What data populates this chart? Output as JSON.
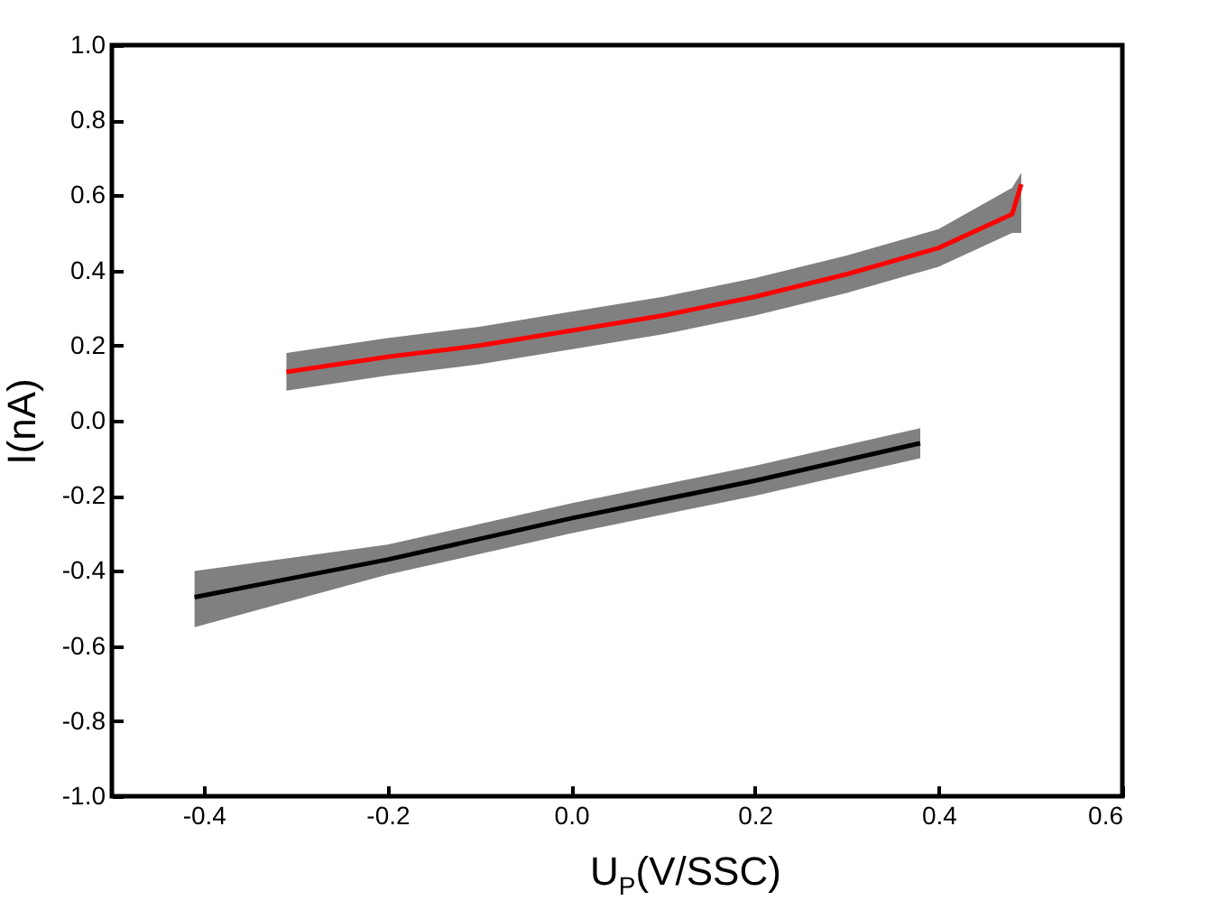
{
  "chart_data": {
    "type": "line",
    "xlabel": "U$_{P}$(V/SSC)",
    "ylabel": "I(nA)",
    "xlim": [
      -0.5,
      0.6
    ],
    "xticks": [
      {
        "value": -0.4,
        "label": "-0.4"
      },
      {
        "value": -0.2,
        "label": "-0.2"
      },
      {
        "value": 0,
        "label": "0.0"
      },
      {
        "value": 0.2,
        "label": "0.2"
      },
      {
        "value": 0.4,
        "label": "0.4"
      },
      {
        "value": 0.6,
        "label": "0.6"
      }
    ],
    "ylim": [
      -1,
      1
    ],
    "yticks": [
      {
        "value": -1,
        "label": "-1.0"
      },
      {
        "value": -0.8,
        "label": "-0.8"
      },
      {
        "value": -0.6,
        "label": "-0.6"
      },
      {
        "value": -0.4,
        "label": "-0.4"
      },
      {
        "value": -0.2,
        "label": "-0.2"
      },
      {
        "value": 0,
        "label": "0.0"
      },
      {
        "value": 0.2,
        "label": "0.2"
      },
      {
        "value": 0.4,
        "label": "0.4"
      },
      {
        "value": 0.6,
        "label": "0.6"
      },
      {
        "value": 0.8,
        "label": "0.8"
      },
      {
        "value": 1,
        "label": "1.0"
      }
    ],
    "series": [
      {
        "color": "#ff0000",
        "x": [
          -0.31,
          -0.2,
          -0.1,
          0,
          0.1,
          0.2,
          0.3,
          0.4,
          0.48,
          0.49
        ],
        "values": [
          0.13,
          0.17,
          0.2,
          0.24,
          0.28,
          0.33,
          0.39,
          0.46,
          0.55,
          0.63
        ],
        "lower": [
          0.08,
          0.12,
          0.15,
          0.19,
          0.23,
          0.28,
          0.34,
          0.41,
          0.5,
          0.5
        ],
        "upper": [
          0.18,
          0.22,
          0.25,
          0.29,
          0.33,
          0.38,
          0.44,
          0.51,
          0.62,
          0.66
        ]
      },
      {
        "color": "#000000",
        "x": [
          -0.41,
          -0.2,
          0,
          0.2,
          0.38
        ],
        "values": [
          -0.47,
          -0.37,
          -0.26,
          -0.16,
          -0.06
        ],
        "lower": [
          -0.55,
          -0.41,
          -0.3,
          -0.2,
          -0.1
        ],
        "upper": [
          -0.4,
          -0.33,
          -0.22,
          -0.12,
          -0.02
        ]
      }
    ],
    "grid": false,
    "marker": "none",
    "line_style": "solid"
  }
}
